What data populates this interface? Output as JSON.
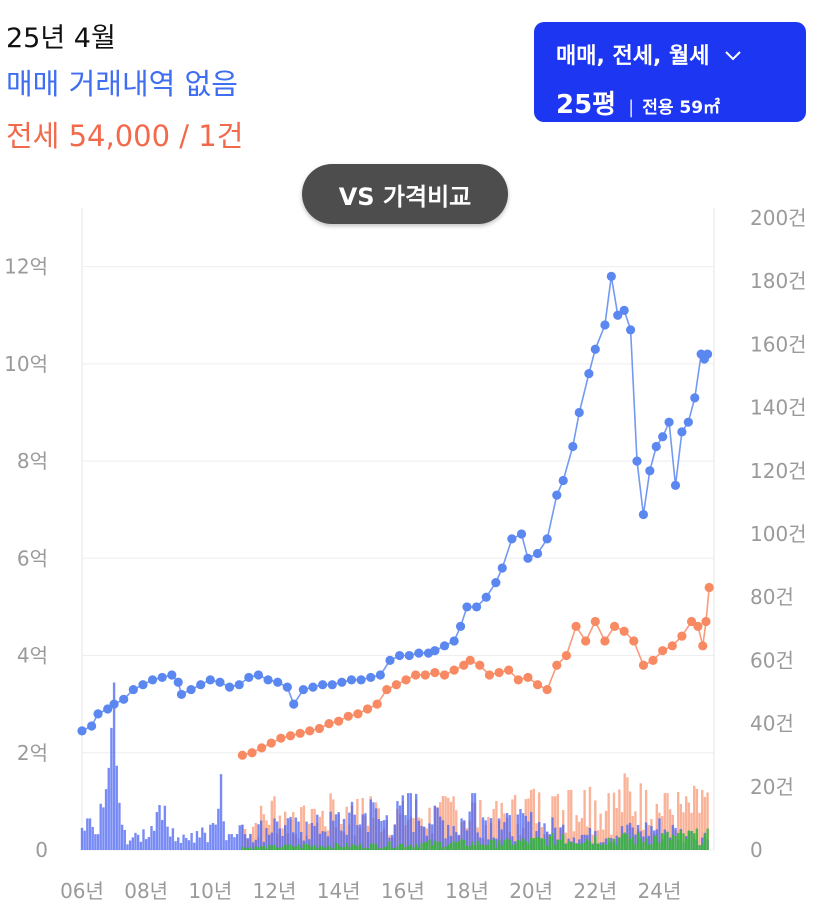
{
  "summary": {
    "period": "25년 4월",
    "trade_text": "매매 거래내역 없음",
    "jeonse_text": "전세 54,000 / 1건"
  },
  "selector": {
    "types_label": "매매, 전세, 월세",
    "size_label": "25평",
    "area_label": "전용 59㎡",
    "icon": "chevron-down-icon"
  },
  "compare_button": {
    "label": "VS 가격비교"
  },
  "colors": {
    "trade": "#5b87f0",
    "jeonse": "#f88a63",
    "volume_trade": "#4a63f2",
    "volume_jeonse": "#f88a63",
    "volume_monthly": "#3ab53a",
    "selector_bg": "#1d36f2",
    "compare_bg": "#4d4d4d"
  },
  "chart_data": {
    "type": "line",
    "x_ticks": [
      "06년",
      "08년",
      "10년",
      "12년",
      "14년",
      "16년",
      "18년",
      "20년",
      "22년",
      "24년"
    ],
    "y_left_ticks": [
      "0",
      "2억",
      "4억",
      "6억",
      "8억",
      "10억",
      "12억"
    ],
    "y_right_ticks": [
      "0",
      "20건",
      "40건",
      "60건",
      "80건",
      "100건",
      "120건",
      "140건",
      "160건",
      "180건",
      "200건"
    ],
    "y_left_range": [
      0,
      13
    ],
    "y_right_range": [
      0,
      200
    ],
    "grid": true,
    "price_series": [
      {
        "name": "매매",
        "unit": "억",
        "points": [
          [
            2006.0,
            2.45
          ],
          [
            2006.3,
            2.55
          ],
          [
            2006.5,
            2.8
          ],
          [
            2006.8,
            2.9
          ],
          [
            2007.0,
            3.0
          ],
          [
            2007.3,
            3.1
          ],
          [
            2007.6,
            3.3
          ],
          [
            2007.9,
            3.4
          ],
          [
            2008.2,
            3.5
          ],
          [
            2008.5,
            3.55
          ],
          [
            2008.8,
            3.6
          ],
          [
            2009.0,
            3.45
          ],
          [
            2009.1,
            3.2
          ],
          [
            2009.4,
            3.3
          ],
          [
            2009.7,
            3.4
          ],
          [
            2010.0,
            3.5
          ],
          [
            2010.3,
            3.45
          ],
          [
            2010.6,
            3.35
          ],
          [
            2010.9,
            3.4
          ],
          [
            2011.2,
            3.55
          ],
          [
            2011.5,
            3.6
          ],
          [
            2011.8,
            3.5
          ],
          [
            2012.1,
            3.45
          ],
          [
            2012.4,
            3.35
          ],
          [
            2012.6,
            3.0
          ],
          [
            2012.9,
            3.3
          ],
          [
            2013.2,
            3.35
          ],
          [
            2013.5,
            3.4
          ],
          [
            2013.8,
            3.4
          ],
          [
            2014.1,
            3.45
          ],
          [
            2014.4,
            3.5
          ],
          [
            2014.7,
            3.5
          ],
          [
            2015.0,
            3.55
          ],
          [
            2015.3,
            3.6
          ],
          [
            2015.6,
            3.9
          ],
          [
            2015.9,
            4.0
          ],
          [
            2016.2,
            4.0
          ],
          [
            2016.5,
            4.05
          ],
          [
            2016.8,
            4.05
          ],
          [
            2017.0,
            4.1
          ],
          [
            2017.3,
            4.2
          ],
          [
            2017.6,
            4.3
          ],
          [
            2017.8,
            4.6
          ],
          [
            2018.0,
            5.0
          ],
          [
            2018.3,
            5.0
          ],
          [
            2018.6,
            5.2
          ],
          [
            2018.9,
            5.5
          ],
          [
            2019.1,
            5.8
          ],
          [
            2019.4,
            6.4
          ],
          [
            2019.7,
            6.5
          ],
          [
            2019.9,
            6.0
          ],
          [
            2020.2,
            6.1
          ],
          [
            2020.5,
            6.4
          ],
          [
            2020.8,
            7.3
          ],
          [
            2021.0,
            7.6
          ],
          [
            2021.3,
            8.3
          ],
          [
            2021.5,
            9.0
          ],
          [
            2021.8,
            9.8
          ],
          [
            2022.0,
            10.3
          ],
          [
            2022.3,
            10.8
          ],
          [
            2022.5,
            11.8
          ],
          [
            2022.7,
            11.0
          ],
          [
            2022.9,
            11.1
          ],
          [
            2023.1,
            10.7
          ],
          [
            2023.3,
            8.0
          ],
          [
            2023.5,
            6.9
          ],
          [
            2023.7,
            7.8
          ],
          [
            2023.9,
            8.3
          ],
          [
            2024.1,
            8.5
          ],
          [
            2024.3,
            8.8
          ],
          [
            2024.5,
            7.5
          ],
          [
            2024.7,
            8.6
          ],
          [
            2024.9,
            8.8
          ],
          [
            2025.1,
            9.3
          ],
          [
            2025.3,
            10.2
          ],
          [
            2025.4,
            10.1
          ],
          [
            2025.5,
            10.2
          ]
        ]
      },
      {
        "name": "전세",
        "unit": "억",
        "points": [
          [
            2011.0,
            1.95
          ],
          [
            2011.3,
            2.0
          ],
          [
            2011.6,
            2.1
          ],
          [
            2011.9,
            2.2
          ],
          [
            2012.2,
            2.3
          ],
          [
            2012.5,
            2.35
          ],
          [
            2012.8,
            2.4
          ],
          [
            2013.1,
            2.45
          ],
          [
            2013.4,
            2.5
          ],
          [
            2013.7,
            2.6
          ],
          [
            2014.0,
            2.65
          ],
          [
            2014.3,
            2.75
          ],
          [
            2014.6,
            2.8
          ],
          [
            2014.9,
            2.9
          ],
          [
            2015.2,
            3.0
          ],
          [
            2015.5,
            3.3
          ],
          [
            2015.8,
            3.4
          ],
          [
            2016.1,
            3.5
          ],
          [
            2016.4,
            3.6
          ],
          [
            2016.7,
            3.6
          ],
          [
            2017.0,
            3.65
          ],
          [
            2017.3,
            3.6
          ],
          [
            2017.6,
            3.7
          ],
          [
            2017.9,
            3.8
          ],
          [
            2018.1,
            3.9
          ],
          [
            2018.4,
            3.8
          ],
          [
            2018.7,
            3.6
          ],
          [
            2019.0,
            3.65
          ],
          [
            2019.3,
            3.7
          ],
          [
            2019.6,
            3.5
          ],
          [
            2019.9,
            3.55
          ],
          [
            2020.2,
            3.4
          ],
          [
            2020.5,
            3.3
          ],
          [
            2020.8,
            3.8
          ],
          [
            2021.1,
            4.0
          ],
          [
            2021.4,
            4.6
          ],
          [
            2021.7,
            4.3
          ],
          [
            2022.0,
            4.7
          ],
          [
            2022.3,
            4.3
          ],
          [
            2022.6,
            4.6
          ],
          [
            2022.9,
            4.5
          ],
          [
            2023.2,
            4.3
          ],
          [
            2023.5,
            3.8
          ],
          [
            2023.8,
            3.9
          ],
          [
            2024.1,
            4.1
          ],
          [
            2024.4,
            4.2
          ],
          [
            2024.7,
            4.4
          ],
          [
            2025.0,
            4.7
          ],
          [
            2025.2,
            4.6
          ],
          [
            2025.35,
            4.2
          ],
          [
            2025.45,
            4.7
          ],
          [
            2025.55,
            5.4
          ]
        ]
      }
    ],
    "volume_series": [
      {
        "name": "매매 거래량",
        "unit": "건",
        "peaks": [
          [
            2006.0,
            7
          ],
          [
            2006.2,
            10
          ],
          [
            2006.45,
            5
          ],
          [
            2006.8,
            26
          ],
          [
            2007.0,
            53
          ],
          [
            2007.25,
            8
          ],
          [
            2007.6,
            4
          ],
          [
            2008.3,
            12
          ],
          [
            2008.6,
            14
          ],
          [
            2009.0,
            4
          ],
          [
            2009.6,
            6
          ],
          [
            2010.0,
            8
          ],
          [
            2010.3,
            24
          ],
          [
            2010.6,
            5
          ],
          [
            2011.0,
            8
          ],
          [
            2012.0,
            10
          ],
          [
            2013.0,
            9
          ],
          [
            2014.0,
            12
          ],
          [
            2015.0,
            16
          ],
          [
            2015.5,
            11
          ],
          [
            2016.2,
            18
          ],
          [
            2017.0,
            14
          ],
          [
            2017.8,
            10
          ],
          [
            2018.2,
            18
          ],
          [
            2019.0,
            10
          ],
          [
            2020.0,
            12
          ],
          [
            2021.0,
            8
          ],
          [
            2022.0,
            6
          ],
          [
            2023.0,
            8
          ],
          [
            2024.0,
            10
          ],
          [
            2025.0,
            6
          ]
        ]
      },
      {
        "name": "전세 거래량",
        "unit": "건",
        "peaks": [
          [
            2011.0,
            8
          ],
          [
            2011.6,
            14
          ],
          [
            2012.0,
            17
          ],
          [
            2012.6,
            12
          ],
          [
            2013.2,
            13
          ],
          [
            2013.8,
            16
          ],
          [
            2014.4,
            14
          ],
          [
            2015.0,
            17
          ],
          [
            2015.8,
            13
          ],
          [
            2016.4,
            16
          ],
          [
            2017.0,
            14
          ],
          [
            2017.6,
            17
          ],
          [
            2018.2,
            15
          ],
          [
            2018.8,
            13
          ],
          [
            2019.4,
            16
          ],
          [
            2020.0,
            19
          ],
          [
            2020.7,
            17
          ],
          [
            2021.2,
            19
          ],
          [
            2021.8,
            20
          ],
          [
            2022.4,
            18
          ],
          [
            2023.0,
            23
          ],
          [
            2023.6,
            19
          ],
          [
            2024.2,
            18
          ],
          [
            2024.8,
            17
          ],
          [
            2025.3,
            19
          ]
        ]
      },
      {
        "name": "월세 거래량",
        "unit": "건",
        "peaks": [
          [
            2011.0,
            1
          ],
          [
            2013.0,
            2
          ],
          [
            2015.0,
            2
          ],
          [
            2017.0,
            3
          ],
          [
            2019.0,
            3
          ],
          [
            2021.0,
            5
          ],
          [
            2023.0,
            5
          ],
          [
            2025.0,
            6
          ]
        ]
      }
    ]
  }
}
